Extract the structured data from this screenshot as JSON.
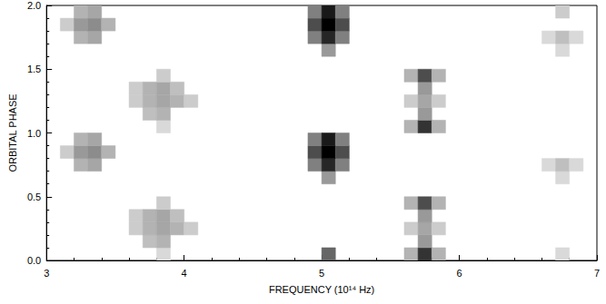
{
  "chart_data": {
    "type": "heatmap",
    "xlabel": "FREQUENCY (10¹⁴ Hz)",
    "ylabel": "ORBITAL PHASE",
    "xlim": [
      3,
      7
    ],
    "xticks": [
      3,
      4,
      5,
      6,
      7
    ],
    "ylim": [
      0,
      2
    ],
    "yticks": [
      {
        "value": 0,
        "label": "0.0"
      },
      0.5,
      {
        "value": 1,
        "label": "1.0"
      },
      1.5,
      {
        "value": 2,
        "label": "2.0"
      }
    ],
    "grid": false,
    "cell_width": 0.1,
    "cell_height": 0.1,
    "color_range": [
      0,
      1
    ],
    "cells": [
      [
        3.15,
        0.85,
        0.2
      ],
      [
        3.25,
        0.75,
        0.3
      ],
      [
        3.35,
        0.75,
        0.35
      ],
      [
        3.25,
        0.85,
        0.4
      ],
      [
        3.35,
        0.85,
        0.45
      ],
      [
        3.45,
        0.85,
        0.3
      ],
      [
        3.25,
        0.95,
        0.3
      ],
      [
        3.35,
        0.95,
        0.35
      ],
      [
        3.85,
        0.05,
        0.15
      ],
      [
        3.65,
        0.25,
        0.2
      ],
      [
        3.65,
        0.35,
        0.2
      ],
      [
        3.75,
        0.15,
        0.25
      ],
      [
        3.75,
        0.25,
        0.3
      ],
      [
        3.75,
        0.35,
        0.3
      ],
      [
        3.85,
        0.15,
        0.3
      ],
      [
        3.85,
        0.25,
        0.35
      ],
      [
        3.85,
        0.35,
        0.35
      ],
      [
        3.95,
        0.25,
        0.3
      ],
      [
        3.95,
        0.35,
        0.25
      ],
      [
        4.05,
        0.25,
        0.2
      ],
      [
        3.85,
        0.45,
        0.2
      ],
      [
        5.05,
        0.05,
        0.6
      ],
      [
        5.05,
        0.65,
        0.4
      ],
      [
        4.95,
        0.75,
        0.5
      ],
      [
        5.05,
        0.75,
        0.85
      ],
      [
        5.15,
        0.75,
        0.5
      ],
      [
        4.95,
        0.85,
        0.7
      ],
      [
        5.05,
        0.85,
        1.0
      ],
      [
        5.15,
        0.85,
        0.7
      ],
      [
        4.95,
        0.95,
        0.5
      ],
      [
        5.05,
        0.95,
        0.9
      ],
      [
        5.15,
        0.95,
        0.5
      ],
      [
        5.65,
        0.05,
        0.3
      ],
      [
        5.75,
        0.05,
        0.8
      ],
      [
        5.85,
        0.05,
        0.3
      ],
      [
        5.75,
        0.15,
        0.4
      ],
      [
        5.65,
        0.25,
        0.2
      ],
      [
        5.75,
        0.25,
        0.35
      ],
      [
        5.85,
        0.25,
        0.2
      ],
      [
        5.75,
        0.35,
        0.4
      ],
      [
        5.65,
        0.45,
        0.3
      ],
      [
        5.75,
        0.45,
        0.7
      ],
      [
        5.85,
        0.45,
        0.3
      ],
      [
        6.75,
        0.05,
        0.15
      ],
      [
        6.75,
        0.65,
        0.15
      ],
      [
        6.65,
        0.75,
        0.15
      ],
      [
        6.75,
        0.75,
        0.25
      ],
      [
        6.85,
        0.75,
        0.15
      ],
      [
        3.15,
        1.85,
        0.2
      ],
      [
        3.25,
        1.75,
        0.3
      ],
      [
        3.35,
        1.75,
        0.35
      ],
      [
        3.25,
        1.85,
        0.4
      ],
      [
        3.35,
        1.85,
        0.45
      ],
      [
        3.45,
        1.85,
        0.3
      ],
      [
        3.25,
        1.95,
        0.3
      ],
      [
        3.35,
        1.95,
        0.35
      ],
      [
        3.85,
        1.05,
        0.15
      ],
      [
        3.65,
        1.25,
        0.2
      ],
      [
        3.65,
        1.35,
        0.2
      ],
      [
        3.75,
        1.15,
        0.25
      ],
      [
        3.75,
        1.25,
        0.3
      ],
      [
        3.75,
        1.35,
        0.3
      ],
      [
        3.85,
        1.15,
        0.3
      ],
      [
        3.85,
        1.25,
        0.35
      ],
      [
        3.85,
        1.35,
        0.35
      ],
      [
        3.95,
        1.25,
        0.3
      ],
      [
        3.95,
        1.35,
        0.25
      ],
      [
        4.05,
        1.25,
        0.2
      ],
      [
        3.85,
        1.45,
        0.2
      ],
      [
        5.05,
        1.65,
        0.4
      ],
      [
        4.95,
        1.75,
        0.5
      ],
      [
        5.05,
        1.75,
        0.85
      ],
      [
        5.15,
        1.75,
        0.5
      ],
      [
        4.95,
        1.85,
        0.7
      ],
      [
        5.05,
        1.85,
        1.0
      ],
      [
        5.15,
        1.85,
        0.7
      ],
      [
        4.95,
        1.95,
        0.5
      ],
      [
        5.05,
        1.95,
        0.9
      ],
      [
        5.15,
        1.95,
        0.5
      ],
      [
        5.65,
        1.05,
        0.3
      ],
      [
        5.75,
        1.05,
        0.8
      ],
      [
        5.85,
        1.05,
        0.3
      ],
      [
        5.75,
        1.15,
        0.4
      ],
      [
        5.65,
        1.25,
        0.2
      ],
      [
        5.75,
        1.25,
        0.35
      ],
      [
        5.85,
        1.25,
        0.2
      ],
      [
        5.75,
        1.35,
        0.4
      ],
      [
        5.65,
        1.45,
        0.3
      ],
      [
        5.75,
        1.45,
        0.7
      ],
      [
        5.85,
        1.45,
        0.3
      ],
      [
        6.75,
        1.65,
        0.15
      ],
      [
        6.65,
        1.75,
        0.15
      ],
      [
        6.75,
        1.75,
        0.25
      ],
      [
        6.85,
        1.75,
        0.15
      ],
      [
        6.75,
        1.95,
        0.2
      ]
    ]
  }
}
